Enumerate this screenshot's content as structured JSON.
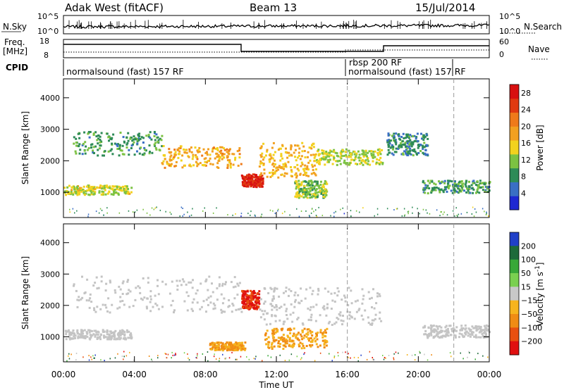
{
  "header": {
    "station": "Adak West (fitACF)",
    "beam": "Beam 13",
    "date": "15/Jul/2014"
  },
  "noise_panel": {
    "left_label": "N.Sky",
    "right_label": "N.Search",
    "left_ticks": [
      "10^5",
      "10^0"
    ],
    "right_ticks": [
      "10^5",
      "10^0"
    ]
  },
  "freq_panel": {
    "left_label_1": "Freq.",
    "left_label_2": "[MHz]",
    "right_label": "Nave",
    "left_ticks": [
      "18",
      "8"
    ],
    "right_ticks": [
      "60",
      "0"
    ]
  },
  "cpid": {
    "label": "CPID",
    "segments": [
      {
        "start_h": 0,
        "text": "normalsound (fast) 157 RF"
      },
      {
        "start_h": 16,
        "text": "rbsp 200 RF"
      },
      {
        "start_h": 16,
        "text": "normalsound (fast) 157 RF"
      }
    ]
  },
  "colors": {
    "power_scale": [
      "#1e28d2",
      "#3a6fc4",
      "#2e8b57",
      "#7cc242",
      "#f2d21e",
      "#f2a020",
      "#ef7a1a",
      "#e03a10",
      "#d81010"
    ],
    "velocity_scale": [
      "#2040c8",
      "#1e6a3a",
      "#38a838",
      "#7ad050",
      "#c8c8c8",
      "#f6b41e",
      "#f08c14",
      "#e85010",
      "#e01010"
    ],
    "ground_scatter": "#c4c4c4"
  },
  "chart_data": [
    {
      "type": "heatmap",
      "title": "Power",
      "xlabel": "",
      "ylabel": "Slant Range [km]",
      "x_ticks": [
        "00:00",
        "04:00",
        "08:00",
        "12:00",
        "16:00",
        "20:00",
        "00:00"
      ],
      "xlim_hours": [
        0,
        24
      ],
      "ylim": [
        200,
        4600
      ],
      "y_ticks": [
        1000,
        2000,
        3000,
        4000
      ],
      "colorbar_label": "Power [dB]",
      "colorbar_ticks": [
        4,
        8,
        12,
        16,
        20,
        24,
        28
      ],
      "colorbar_range": [
        0,
        30
      ],
      "features": [
        {
          "name": "near range band",
          "hours": [
            0,
            3.8
          ],
          "range_km": [
            950,
            1250
          ],
          "level_db": 14
        },
        {
          "name": "far range band",
          "hours": [
            0.5,
            5.5
          ],
          "range_km": [
            2200,
            2950
          ],
          "level_db": 9
        },
        {
          "name": "descending trace",
          "hours": [
            5.5,
            10.0
          ],
          "range_km": [
            1800,
            2500
          ],
          "level_db": 18
        },
        {
          "name": "enhancement",
          "hours": [
            10.0,
            11.2
          ],
          "range_km": [
            1200,
            1600
          ],
          "level_db": 27
        },
        {
          "name": "ascending trace",
          "hours": [
            11.0,
            14.2
          ],
          "range_km": [
            1500,
            2600
          ],
          "level_db": 17
        },
        {
          "name": "patch",
          "hours": [
            13.0,
            14.8
          ],
          "range_km": [
            850,
            1400
          ],
          "level_db": 12
        },
        {
          "name": "post-noon band",
          "hours": [
            14.2,
            18.0
          ],
          "range_km": [
            1900,
            2400
          ],
          "level_db": 13
        },
        {
          "name": "evening band",
          "hours": [
            18.2,
            20.5
          ],
          "range_km": [
            2200,
            2900
          ],
          "level_db": 8
        },
        {
          "name": "late band",
          "hours": [
            20.2,
            24
          ],
          "range_km": [
            1000,
            1400
          ],
          "level_db": 9
        }
      ]
    },
    {
      "type": "heatmap",
      "title": "Velocity",
      "xlabel": "Time UT",
      "ylabel": "Slant Range [km]",
      "x_ticks": [
        "00:00",
        "04:00",
        "08:00",
        "12:00",
        "16:00",
        "20:00",
        "00:00"
      ],
      "xlim_hours": [
        0,
        24
      ],
      "ylim": [
        200,
        4600
      ],
      "y_ticks": [
        1000,
        2000,
        3000,
        4000
      ],
      "colorbar_label": "Velocity [m s^-1]",
      "colorbar_ticks": [
        "200",
        "100",
        "50",
        "15",
        "-15",
        "-50",
        "-100",
        "-200"
      ],
      "features": [
        {
          "name": "ground scatter near",
          "hours": [
            0,
            3.8
          ],
          "range_km": [
            950,
            1250
          ],
          "velocity": 0
        },
        {
          "name": "ground scatter far",
          "hours": [
            0.5,
            10
          ],
          "range_km": [
            1800,
            2950
          ],
          "velocity": 0
        },
        {
          "name": "red patch",
          "hours": [
            10.0,
            11.0
          ],
          "range_km": [
            1900,
            2500
          ],
          "velocity": -200
        },
        {
          "name": "orange patch 1",
          "hours": [
            8.2,
            10.2
          ],
          "range_km": [
            600,
            850
          ],
          "velocity": -40
        },
        {
          "name": "orange patch 2",
          "hours": [
            11.3,
            14.8
          ],
          "range_km": [
            650,
            1300
          ],
          "velocity": -40
        },
        {
          "name": "ground scatter post-noon",
          "hours": [
            11,
            18
          ],
          "range_km": [
            1400,
            2600
          ],
          "velocity": 0
        },
        {
          "name": "ground scatter late",
          "hours": [
            20.2,
            24
          ],
          "range_km": [
            1000,
            1400
          ],
          "velocity": 0
        }
      ]
    }
  ]
}
